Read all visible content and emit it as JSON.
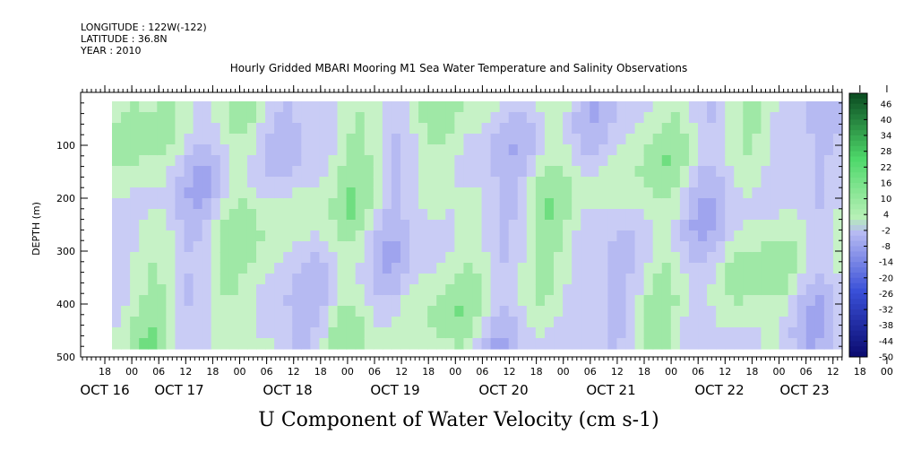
{
  "header": {
    "longitude": "LONGITUDE : 122W(-122)",
    "latitude": "LATITUDE : 36.8N",
    "year": "YEAR : 2010"
  },
  "chart_data": {
    "type": "heatmap",
    "title": "Hourly Gridded MBARI Mooring M1 Sea Water Temperature and Salinity Observations",
    "xlabel": "",
    "ylabel": "DEPTH (m)",
    "variable_label": "U Component of Water Velocity (cm s-1)",
    "y_ticks": [
      "100",
      "200",
      "300",
      "400",
      "500"
    ],
    "ylim": [
      500,
      0
    ],
    "x_hour_ticks": [
      "18",
      "00",
      "06",
      "12",
      "18",
      "00",
      "06",
      "12",
      "18",
      "00",
      "06",
      "12",
      "18",
      "00",
      "06",
      "12",
      "18",
      "00",
      "06",
      "12",
      "18",
      "00",
      "06",
      "12",
      "18",
      "00",
      "06",
      "12",
      "18",
      "00",
      "06",
      "12"
    ],
    "x_day_labels": [
      "OCT 16",
      "OCT 17",
      "OCT 18",
      "OCT 19",
      "OCT 20",
      "OCT 21",
      "OCT 22",
      "OCT 23"
    ],
    "colorbar_labels": [
      "46",
      "40",
      "34",
      "28",
      "22",
      "16",
      "10",
      "4",
      "-2",
      "-8",
      "-14",
      "-20",
      "-26",
      "-32",
      "-38",
      "-44",
      "-50"
    ],
    "colorbar_range": [
      -50,
      50
    ],
    "colors": {
      "strong_negative": "#0a0a6e",
      "negative": "#3a50d8",
      "weak_negative": "#b6baf2",
      "weak_positive": "#b6f0b6",
      "positive": "#4ed86a",
      "strong_positive": "#0a4a20"
    }
  }
}
